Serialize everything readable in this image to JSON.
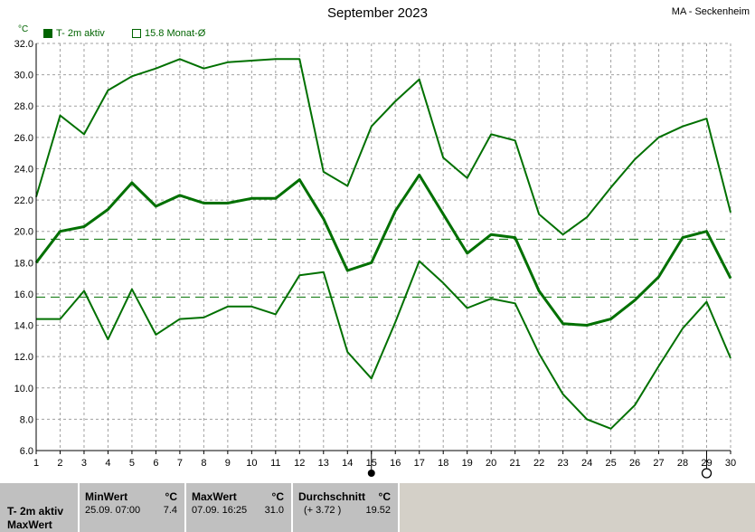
{
  "title": "September 2023",
  "station": "MA - Seckenheim",
  "legend": {
    "series1": "T- 2m aktiv",
    "series2": "15.8 Monat-Ø"
  },
  "y_unit": "°C",
  "colors": {
    "line": "#007000",
    "grid": "#a0a0a0",
    "panel": "#c0c0c0"
  },
  "chart_data": {
    "type": "line",
    "x": [
      1,
      2,
      3,
      4,
      5,
      6,
      7,
      8,
      9,
      10,
      11,
      12,
      13,
      14,
      15,
      16,
      17,
      18,
      19,
      20,
      21,
      22,
      23,
      24,
      25,
      26,
      27,
      28,
      29,
      30
    ],
    "ylim": [
      6.0,
      32.0
    ],
    "yticks": [
      "6.0",
      "8.0",
      "10.0",
      "12.0",
      "14.0",
      "16.0",
      "18.0",
      "20.0",
      "22.0",
      "24.0",
      "26.0",
      "28.0",
      "30.0",
      "32.0"
    ],
    "grid": true,
    "series": [
      {
        "name": "T- 2m aktiv",
        "values": [
          18.0,
          20.0,
          20.3,
          21.4,
          23.1,
          21.6,
          22.3,
          21.8,
          21.8,
          22.1,
          22.1,
          23.3,
          20.8,
          17.5,
          18.0,
          21.3,
          23.6,
          21.1,
          18.6,
          19.8,
          19.6,
          16.2,
          14.1,
          14.0,
          14.4,
          15.6,
          17.1,
          19.6,
          20.0,
          17.0
        ]
      },
      {
        "values": [
          22.2,
          27.4,
          26.2,
          29.0,
          29.9,
          30.4,
          31.0,
          30.4,
          30.8,
          30.9,
          31.0,
          31.0,
          23.8,
          22.9,
          26.7,
          28.3,
          29.7,
          24.7,
          23.4,
          26.2,
          25.8,
          21.1,
          19.8,
          20.9,
          22.8,
          24.6,
          26.0,
          26.7,
          27.2,
          21.2
        ]
      },
      {
        "values": [
          14.4,
          14.4,
          16.2,
          13.1,
          16.3,
          13.4,
          14.4,
          14.5,
          15.2,
          15.2,
          14.7,
          17.2,
          17.4,
          12.3,
          10.6,
          14.2,
          18.1,
          16.7,
          15.1,
          15.7,
          15.4,
          12.2,
          9.6,
          8.0,
          7.4,
          8.9,
          11.4,
          13.8,
          15.5,
          11.9
        ]
      }
    ],
    "reference_lines": [
      19.5,
      15.8
    ],
    "markers": {
      "filled_day": 15,
      "open_day": 29
    }
  },
  "stats": {
    "row_label": "T- 2m aktiv",
    "row_label2": "MaxWert",
    "min": {
      "label": "MinWert",
      "unit": "°C",
      "date": "25.09.  07:00",
      "value": "7.4"
    },
    "max": {
      "label": "MaxWert",
      "unit": "°C",
      "date": "07.09.  16:25",
      "value": "31.0"
    },
    "avg": {
      "label": "Durchschnitt",
      "unit": "°C",
      "delta": "(+ 3.72 )",
      "value": "19.52"
    }
  }
}
